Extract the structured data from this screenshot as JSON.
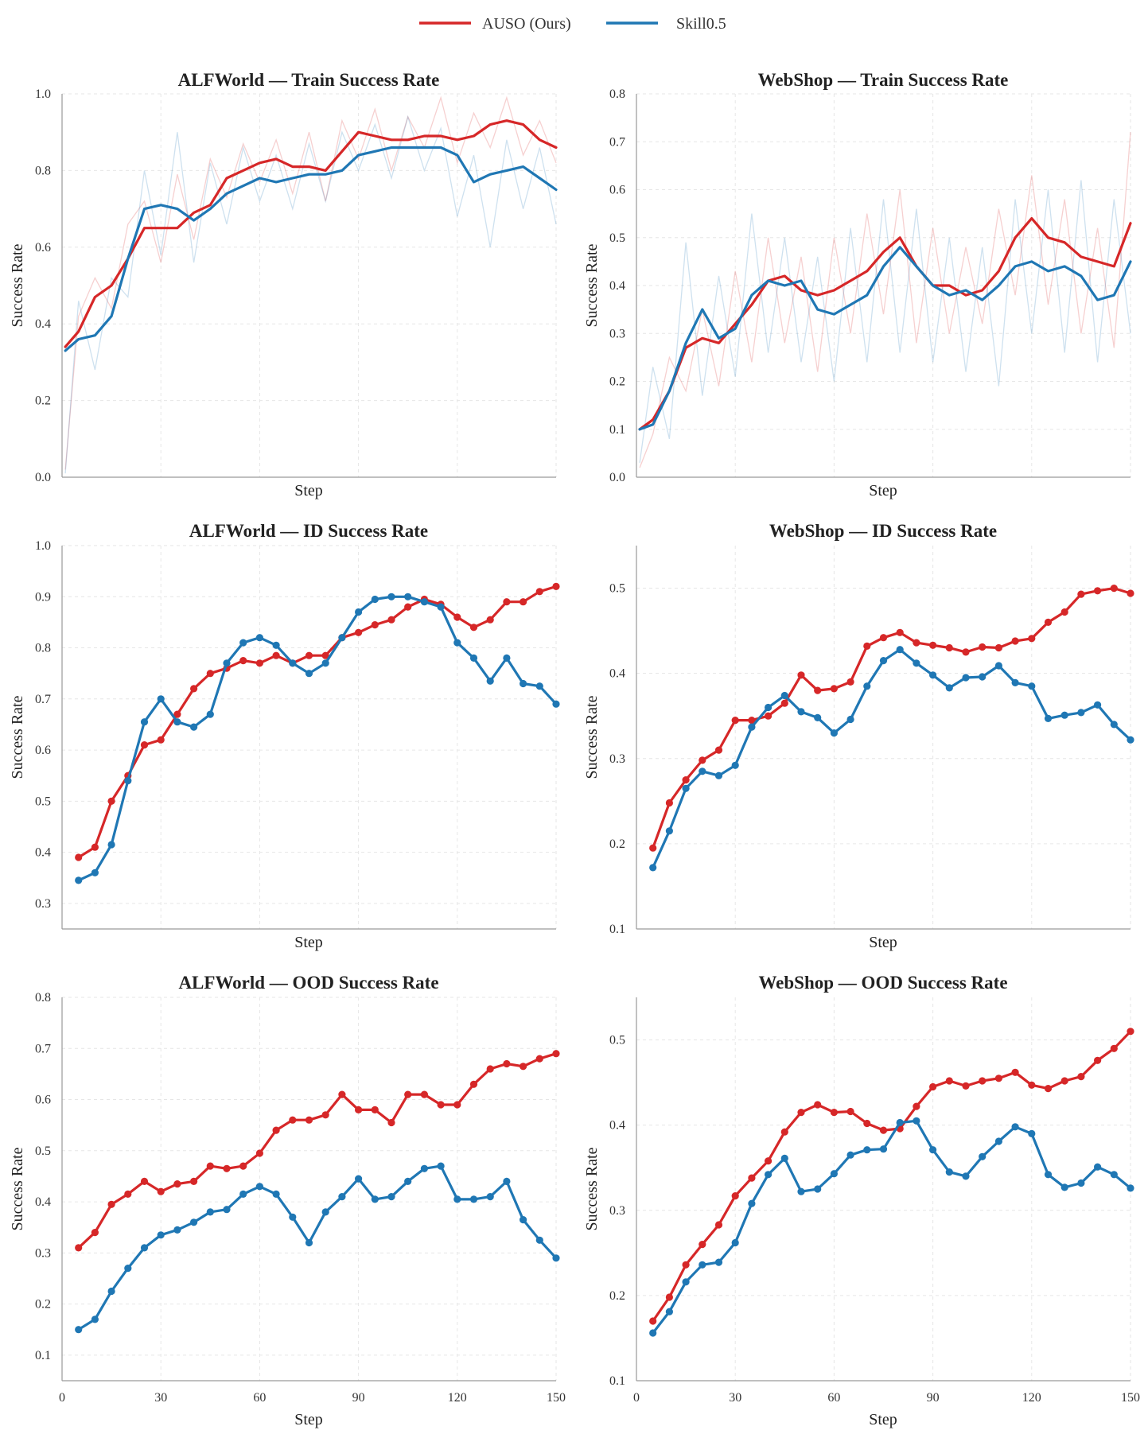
{
  "legend": [
    {
      "label": "AUSO (Ours)",
      "color": "#d62728"
    },
    {
      "label": "Skill0.5",
      "color": "#1f77b4"
    }
  ],
  "chart_data": [
    {
      "id": "alf_train",
      "type": "line",
      "title": "ALFWorld — Train Success Rate",
      "xlabel": "Step",
      "ylabel": "Success Rate",
      "xlim": [
        0,
        150
      ],
      "ylim": [
        0.0,
        1.0
      ],
      "yticks": [
        "0.0",
        "0.2",
        "0.4",
        "0.6",
        "0.8",
        "1.0"
      ],
      "xticks": [],
      "grid": true,
      "markers": false,
      "x": [
        1,
        5,
        10,
        15,
        20,
        25,
        30,
        35,
        40,
        45,
        50,
        55,
        60,
        65,
        70,
        75,
        80,
        85,
        90,
        95,
        100,
        105,
        110,
        115,
        120,
        125,
        130,
        135,
        140,
        145,
        150
      ],
      "series": [
        {
          "name": "AUSO (Ours)",
          "color": "#d62728",
          "values": [
            0.34,
            0.38,
            0.47,
            0.5,
            0.57,
            0.65,
            0.65,
            0.65,
            0.69,
            0.71,
            0.78,
            0.8,
            0.82,
            0.83,
            0.81,
            0.81,
            0.8,
            0.85,
            0.9,
            0.89,
            0.88,
            0.88,
            0.89,
            0.89,
            0.88,
            0.89,
            0.92,
            0.93,
            0.92,
            0.88,
            0.86
          ]
        },
        {
          "name": "Skill0.5",
          "color": "#1f77b4",
          "values": [
            0.33,
            0.36,
            0.37,
            0.42,
            0.57,
            0.7,
            0.71,
            0.7,
            0.67,
            0.7,
            0.74,
            0.76,
            0.78,
            0.77,
            0.78,
            0.79,
            0.79,
            0.8,
            0.84,
            0.85,
            0.86,
            0.86,
            0.86,
            0.86,
            0.84,
            0.77,
            0.79,
            0.8,
            0.81,
            0.78,
            0.75
          ]
        }
      ],
      "raw_series": [
        {
          "name": "AUSO (Ours)",
          "color": "#d62728",
          "values": [
            0.02,
            0.42,
            0.52,
            0.44,
            0.66,
            0.72,
            0.56,
            0.79,
            0.62,
            0.83,
            0.73,
            0.87,
            0.77,
            0.88,
            0.74,
            0.9,
            0.72,
            0.93,
            0.83,
            0.96,
            0.8,
            0.94,
            0.86,
            0.99,
            0.82,
            0.95,
            0.86,
            0.99,
            0.84,
            0.93,
            0.82
          ]
        },
        {
          "name": "Skill0.5",
          "color": "#1f77b4",
          "values": [
            0.01,
            0.46,
            0.28,
            0.52,
            0.47,
            0.8,
            0.58,
            0.9,
            0.56,
            0.82,
            0.66,
            0.86,
            0.72,
            0.84,
            0.7,
            0.87,
            0.72,
            0.9,
            0.8,
            0.92,
            0.78,
            0.94,
            0.8,
            0.91,
            0.68,
            0.84,
            0.6,
            0.88,
            0.7,
            0.86,
            0.66
          ]
        }
      ]
    },
    {
      "id": "web_train",
      "type": "line",
      "title": "WebShop — Train Success Rate",
      "xlabel": "Step",
      "ylabel": "Success Rate",
      "xlim": [
        0,
        150
      ],
      "ylim": [
        0.0,
        0.8
      ],
      "yticks": [
        "0.0",
        "0.1",
        "0.2",
        "0.3",
        "0.4",
        "0.5",
        "0.6",
        "0.7",
        "0.8"
      ],
      "xticks": [],
      "grid": true,
      "markers": false,
      "x": [
        1,
        5,
        10,
        15,
        20,
        25,
        30,
        35,
        40,
        45,
        50,
        55,
        60,
        65,
        70,
        75,
        80,
        85,
        90,
        95,
        100,
        105,
        110,
        115,
        120,
        125,
        130,
        135,
        140,
        145,
        150
      ],
      "series": [
        {
          "name": "AUSO (Ours)",
          "color": "#d62728",
          "values": [
            0.1,
            0.12,
            0.18,
            0.27,
            0.29,
            0.28,
            0.32,
            0.36,
            0.41,
            0.42,
            0.39,
            0.38,
            0.39,
            0.41,
            0.43,
            0.47,
            0.5,
            0.44,
            0.4,
            0.4,
            0.38,
            0.39,
            0.43,
            0.5,
            0.54,
            0.5,
            0.49,
            0.46,
            0.45,
            0.44,
            0.53
          ]
        },
        {
          "name": "Skill0.5",
          "color": "#1f77b4",
          "values": [
            0.1,
            0.11,
            0.18,
            0.28,
            0.35,
            0.29,
            0.31,
            0.38,
            0.41,
            0.4,
            0.41,
            0.35,
            0.34,
            0.36,
            0.38,
            0.44,
            0.48,
            0.44,
            0.4,
            0.38,
            0.39,
            0.37,
            0.4,
            0.44,
            0.45,
            0.43,
            0.44,
            0.42,
            0.37,
            0.38,
            0.45
          ]
        }
      ],
      "raw_series": [
        {
          "name": "AUSO (Ours)",
          "color": "#d62728",
          "values": [
            0.02,
            0.09,
            0.25,
            0.18,
            0.35,
            0.19,
            0.43,
            0.24,
            0.5,
            0.28,
            0.46,
            0.22,
            0.5,
            0.3,
            0.55,
            0.34,
            0.6,
            0.28,
            0.52,
            0.3,
            0.48,
            0.32,
            0.56,
            0.38,
            0.63,
            0.36,
            0.58,
            0.3,
            0.52,
            0.27,
            0.72
          ]
        },
        {
          "name": "Skill0.5",
          "color": "#1f77b4",
          "values": [
            0.03,
            0.23,
            0.08,
            0.49,
            0.17,
            0.42,
            0.21,
            0.55,
            0.26,
            0.5,
            0.24,
            0.46,
            0.2,
            0.52,
            0.24,
            0.58,
            0.26,
            0.56,
            0.24,
            0.5,
            0.22,
            0.48,
            0.19,
            0.58,
            0.3,
            0.6,
            0.26,
            0.62,
            0.24,
            0.58,
            0.3
          ]
        }
      ]
    },
    {
      "id": "alf_id",
      "type": "line",
      "title": "ALFWorld — ID Success Rate",
      "xlabel": "Step",
      "ylabel": "Success Rate",
      "xlim": [
        0,
        150
      ],
      "ylim": [
        0.25,
        1.0
      ],
      "yticks": [
        "0.3",
        "0.4",
        "0.5",
        "0.6",
        "0.7",
        "0.8",
        "0.9",
        "1.0"
      ],
      "xticks": [],
      "grid": true,
      "markers": true,
      "x": [
        5,
        10,
        15,
        20,
        25,
        30,
        35,
        40,
        45,
        50,
        55,
        60,
        65,
        70,
        75,
        80,
        85,
        90,
        95,
        100,
        105,
        110,
        115,
        120,
        125,
        130,
        135,
        140,
        145,
        150
      ],
      "series": [
        {
          "name": "AUSO (Ours)",
          "color": "#d62728",
          "values": [
            0.39,
            0.41,
            0.5,
            0.55,
            0.61,
            0.62,
            0.67,
            0.72,
            0.75,
            0.76,
            0.775,
            0.77,
            0.785,
            0.77,
            0.785,
            0.785,
            0.82,
            0.83,
            0.845,
            0.855,
            0.88,
            0.895,
            0.885,
            0.86,
            0.84,
            0.855,
            0.89,
            0.89,
            0.91,
            0.92
          ]
        },
        {
          "name": "Skill0.5",
          "color": "#1f77b4",
          "values": [
            0.345,
            0.36,
            0.415,
            0.54,
            0.655,
            0.7,
            0.655,
            0.645,
            0.67,
            0.77,
            0.81,
            0.82,
            0.805,
            0.77,
            0.75,
            0.77,
            0.82,
            0.87,
            0.895,
            0.9,
            0.9,
            0.89,
            0.88,
            0.81,
            0.78,
            0.735,
            0.78,
            0.73,
            0.725,
            0.69
          ]
        }
      ]
    },
    {
      "id": "web_id",
      "type": "line",
      "title": "WebShop — ID Success Rate",
      "xlabel": "Step",
      "ylabel": "Success Rate",
      "xlim": [
        0,
        150
      ],
      "ylim": [
        0.1,
        0.55
      ],
      "yticks": [
        "0.1",
        "0.2",
        "0.3",
        "0.4",
        "0.5"
      ],
      "xticks": [],
      "grid": true,
      "markers": true,
      "x": [
        5,
        10,
        15,
        20,
        25,
        30,
        35,
        40,
        45,
        50,
        55,
        60,
        65,
        70,
        75,
        80,
        85,
        90,
        95,
        100,
        105,
        110,
        115,
        120,
        125,
        130,
        135,
        140,
        145,
        150
      ],
      "series": [
        {
          "name": "AUSO (Ours)",
          "color": "#d62728",
          "values": [
            0.195,
            0.248,
            0.275,
            0.298,
            0.31,
            0.345,
            0.345,
            0.35,
            0.365,
            0.398,
            0.38,
            0.382,
            0.39,
            0.432,
            0.442,
            0.448,
            0.436,
            0.433,
            0.43,
            0.425,
            0.431,
            0.43,
            0.438,
            0.441,
            0.46,
            0.472,
            0.493,
            0.497,
            0.5,
            0.494
          ]
        },
        {
          "name": "Skill0.5",
          "color": "#1f77b4",
          "values": [
            0.172,
            0.215,
            0.265,
            0.285,
            0.28,
            0.292,
            0.337,
            0.36,
            0.374,
            0.355,
            0.348,
            0.33,
            0.346,
            0.385,
            0.415,
            0.428,
            0.412,
            0.398,
            0.383,
            0.395,
            0.396,
            0.409,
            0.389,
            0.385,
            0.347,
            0.351,
            0.354,
            0.363,
            0.34,
            0.322
          ]
        }
      ]
    },
    {
      "id": "alf_ood",
      "type": "line",
      "title": "ALFWorld — OOD Success Rate",
      "xlabel": "Step",
      "ylabel": "Success Rate",
      "xlim": [
        0,
        150
      ],
      "ylim": [
        0.05,
        0.8
      ],
      "yticks": [
        "0.1",
        "0.2",
        "0.3",
        "0.4",
        "0.5",
        "0.6",
        "0.7",
        "0.8"
      ],
      "xticks": [
        "0",
        "30",
        "60",
        "90",
        "120",
        "150"
      ],
      "grid": true,
      "markers": true,
      "x": [
        5,
        10,
        15,
        20,
        25,
        30,
        35,
        40,
        45,
        50,
        55,
        60,
        65,
        70,
        75,
        80,
        85,
        90,
        95,
        100,
        105,
        110,
        115,
        120,
        125,
        130,
        135,
        140,
        145,
        150
      ],
      "series": [
        {
          "name": "AUSO (Ours)",
          "color": "#d62728",
          "values": [
            0.31,
            0.34,
            0.395,
            0.415,
            0.44,
            0.42,
            0.435,
            0.44,
            0.47,
            0.465,
            0.47,
            0.495,
            0.54,
            0.56,
            0.56,
            0.57,
            0.61,
            0.58,
            0.58,
            0.555,
            0.61,
            0.61,
            0.59,
            0.59,
            0.63,
            0.66,
            0.67,
            0.665,
            0.68,
            0.69
          ]
        },
        {
          "name": "Skill0.5",
          "color": "#1f77b4",
          "values": [
            0.15,
            0.17,
            0.225,
            0.27,
            0.31,
            0.335,
            0.345,
            0.36,
            0.38,
            0.385,
            0.415,
            0.43,
            0.415,
            0.37,
            0.32,
            0.38,
            0.41,
            0.445,
            0.405,
            0.41,
            0.44,
            0.465,
            0.47,
            0.405,
            0.405,
            0.41,
            0.44,
            0.365,
            0.325,
            0.29
          ]
        }
      ]
    },
    {
      "id": "web_ood",
      "type": "line",
      "title": "WebShop — OOD Success Rate",
      "xlabel": "Step",
      "ylabel": "Success Rate",
      "xlim": [
        0,
        150
      ],
      "ylim": [
        0.1,
        0.55
      ],
      "yticks": [
        "0.1",
        "0.2",
        "0.3",
        "0.4",
        "0.5"
      ],
      "xticks": [
        "0",
        "30",
        "60",
        "90",
        "120",
        "150"
      ],
      "grid": true,
      "markers": true,
      "x": [
        5,
        10,
        15,
        20,
        25,
        30,
        35,
        40,
        45,
        50,
        55,
        60,
        65,
        70,
        75,
        80,
        85,
        90,
        95,
        100,
        105,
        110,
        115,
        120,
        125,
        130,
        135,
        140,
        145,
        150
      ],
      "series": [
        {
          "name": "AUSO (Ours)",
          "color": "#d62728",
          "values": [
            0.17,
            0.198,
            0.236,
            0.26,
            0.283,
            0.317,
            0.338,
            0.358,
            0.392,
            0.415,
            0.424,
            0.415,
            0.416,
            0.402,
            0.394,
            0.396,
            0.422,
            0.445,
            0.452,
            0.446,
            0.452,
            0.455,
            0.462,
            0.447,
            0.443,
            0.452,
            0.457,
            0.476,
            0.49,
            0.51
          ]
        },
        {
          "name": "Skill0.5",
          "color": "#1f77b4",
          "values": [
            0.156,
            0.181,
            0.216,
            0.236,
            0.239,
            0.262,
            0.308,
            0.342,
            0.361,
            0.322,
            0.325,
            0.343,
            0.365,
            0.371,
            0.372,
            0.403,
            0.405,
            0.371,
            0.345,
            0.34,
            0.363,
            0.381,
            0.398,
            0.39,
            0.342,
            0.327,
            0.332,
            0.351,
            0.342,
            0.326
          ]
        }
      ]
    }
  ]
}
